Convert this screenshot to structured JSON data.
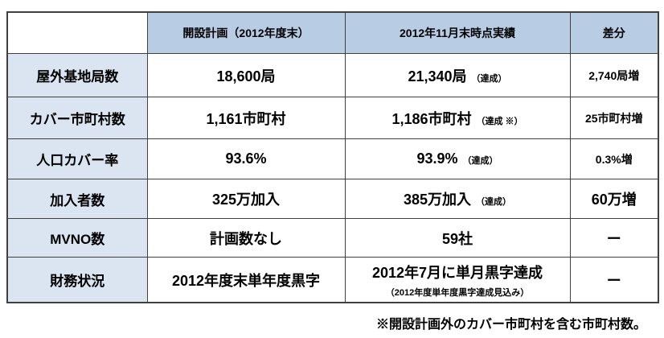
{
  "table": {
    "header": [
      "開設計画（2012年度末）",
      "2012年11月末時点実績",
      "差分"
    ],
    "rows": [
      [
        {
          "text": "屋外基地局数"
        },
        {
          "text": "18,600局"
        },
        {
          "text": "21,340局",
          "note": "（達成）"
        },
        {
          "text": "2,740局増"
        }
      ],
      [
        {
          "text": "カバー市町村数"
        },
        {
          "text": "1,161市町村"
        },
        {
          "text": "1,186市町村",
          "note": "（達成 ※）"
        },
        {
          "text": "25市町村増"
        }
      ],
      [
        {
          "text": "人口カバー率"
        },
        {
          "text": "93.6%"
        },
        {
          "text": "93.9%",
          "note": "（達成）"
        },
        {
          "text": "0.3%増"
        }
      ],
      [
        {
          "text": "加入者数"
        },
        {
          "text": "325万加入"
        },
        {
          "text": "385万加入",
          "note": "（達成）"
        },
        {
          "text": "60万増"
        }
      ],
      [
        {
          "text": "MVNO数"
        },
        {
          "text": "計画数なし"
        },
        {
          "text": "59社"
        },
        {
          "text": "ー"
        }
      ],
      [
        {
          "text": "財務状況"
        },
        {
          "text": "2012年度末単年度黒字"
        },
        {
          "text": "2012年7月に単月黒字達成",
          "subnote": "（2012年度単年度黒字達成見込み）"
        },
        {
          "text": "ー"
        }
      ]
    ],
    "footnote": "※開設計画外のカバー市町村を含む市町村数。"
  }
}
